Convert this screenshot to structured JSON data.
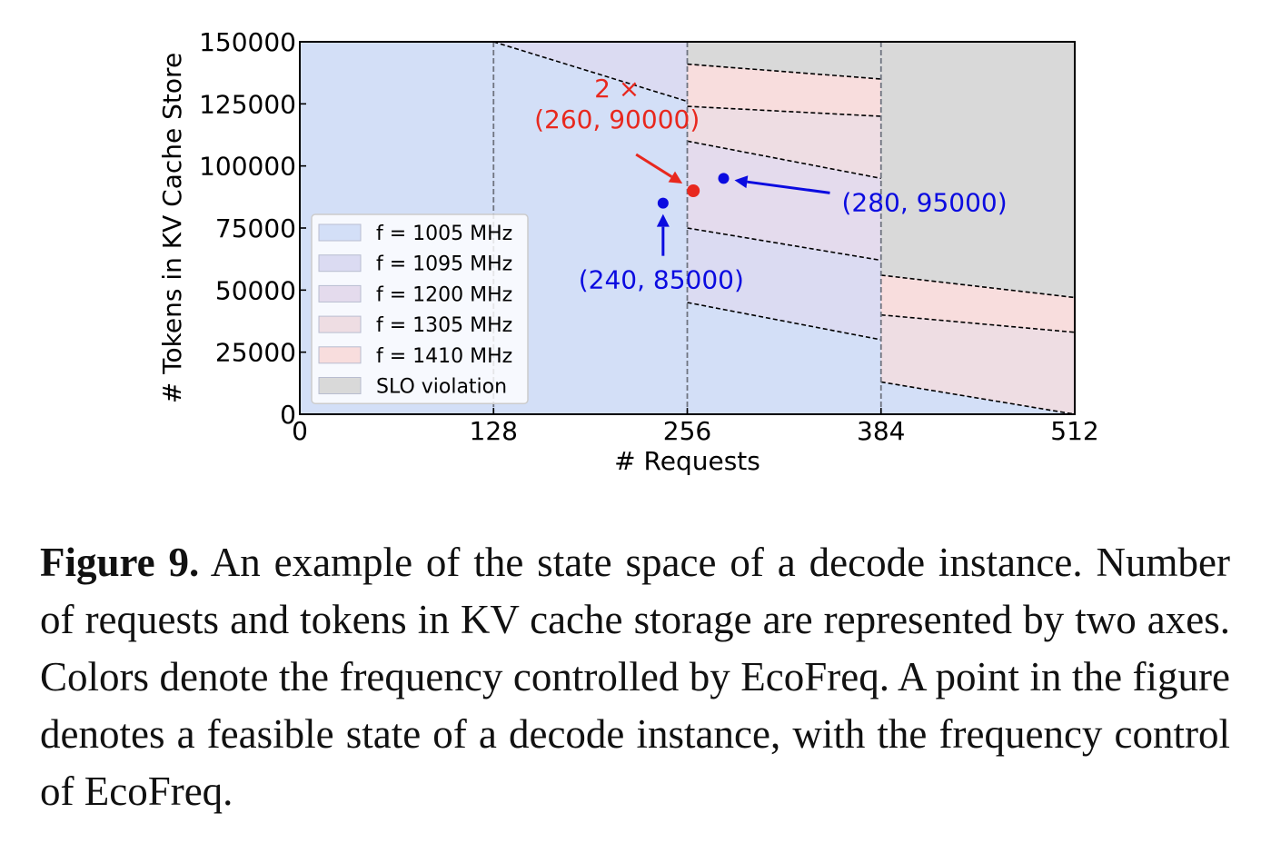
{
  "chart_data": {
    "type": "area",
    "xlabel": "# Requests",
    "ylabel": "# Tokens in KV Cache Store",
    "xlim": [
      0,
      512
    ],
    "ylim": [
      0,
      150000
    ],
    "xticks": [
      "0",
      "128",
      "256",
      "384",
      "512"
    ],
    "yticks": [
      "0",
      "25000",
      "50000",
      "75000",
      "100000",
      "125000",
      "150000"
    ],
    "grid": false,
    "legend_position": "lower-left",
    "legend": [
      {
        "label": "f = 1005 MHz",
        "color": "#d3dff7"
      },
      {
        "label": "f = 1095 MHz",
        "color": "#dbdbf2"
      },
      {
        "label": "f = 1200 MHz",
        "color": "#e4dbed"
      },
      {
        "label": "f = 1305 MHz",
        "color": "#eedde3"
      },
      {
        "label": "f = 1410 MHz",
        "color": "#f8dddd"
      },
      {
        "label": "SLO violation",
        "color": "#d9d9d9"
      }
    ],
    "boundaries": [
      {
        "x": [
          128,
          256
        ],
        "y": [
          150000,
          126000
        ]
      },
      {
        "x": [
          256,
          384
        ],
        "y": [
          141000,
          135000
        ]
      },
      {
        "x": [
          256,
          384
        ],
        "y": [
          124000,
          120000
        ]
      },
      {
        "x": [
          256,
          384
        ],
        "y": [
          110000,
          95000
        ]
      },
      {
        "x": [
          256,
          384
        ],
        "y": [
          75000,
          62000
        ]
      },
      {
        "x": [
          256,
          384
        ],
        "y": [
          45000,
          30000
        ]
      },
      {
        "x": [
          384,
          512
        ],
        "y": [
          56000,
          47000
        ]
      },
      {
        "x": [
          384,
          512
        ],
        "y": [
          40000,
          33000
        ]
      },
      {
        "x": [
          384,
          512
        ],
        "y": [
          13000,
          0
        ]
      }
    ],
    "vlines": [
      128,
      256,
      384
    ],
    "regions": [
      {
        "name": "f = 1095 MHz",
        "x": [
          128,
          256
        ],
        "upper": [
          150000,
          150000
        ],
        "lower": [
          150000,
          126000
        ]
      },
      {
        "name": "SLO violation",
        "x": [
          256,
          384
        ],
        "upper": [
          150000,
          150000
        ],
        "lower": [
          141000,
          135000
        ]
      },
      {
        "name": "f = 1410 MHz",
        "x": [
          256,
          384
        ],
        "upper": [
          141000,
          135000
        ],
        "lower": [
          124000,
          120000
        ]
      },
      {
        "name": "f = 1305 MHz",
        "x": [
          256,
          384
        ],
        "upper": [
          124000,
          120000
        ],
        "lower": [
          110000,
          95000
        ]
      },
      {
        "name": "f = 1200 MHz",
        "x": [
          256,
          384
        ],
        "upper": [
          110000,
          95000
        ],
        "lower": [
          75000,
          62000
        ]
      },
      {
        "name": "f = 1095 MHz",
        "x": [
          256,
          384
        ],
        "upper": [
          75000,
          62000
        ],
        "lower": [
          45000,
          30000
        ]
      },
      {
        "name": "SLO violation",
        "x": [
          384,
          512
        ],
        "upper": [
          150000,
          150000
        ],
        "lower": [
          56000,
          47000
        ]
      },
      {
        "name": "f = 1410 MHz",
        "x": [
          384,
          512
        ],
        "upper": [
          56000,
          47000
        ],
        "lower": [
          40000,
          33000
        ]
      },
      {
        "name": "f = 1305 MHz",
        "x": [
          384,
          512
        ],
        "upper": [
          40000,
          33000
        ],
        "lower": [
          13000,
          0
        ]
      }
    ],
    "points": [
      {
        "x": 260,
        "y": 90000,
        "color": "#e8281e",
        "label_lines": [
          "2 ×",
          "(260, 90000)"
        ]
      },
      {
        "x": 240,
        "y": 85000,
        "color": "#0b0be0",
        "label_lines": [
          "(240, 85000)"
        ]
      },
      {
        "x": 280,
        "y": 95000,
        "color": "#0b0be0",
        "label_lines": [
          "(280, 95000)"
        ]
      }
    ]
  },
  "caption": {
    "label": "Figure 9.",
    "text": "An example of the state space of a decode instance. Number of requests and tokens in KV cache storage are rep­resented by two axes. Colors denote the frequency controlled by EcoFreq. A point in the figure denotes a feasible state of a decode instance, with the frequency control of EcoFreq."
  }
}
